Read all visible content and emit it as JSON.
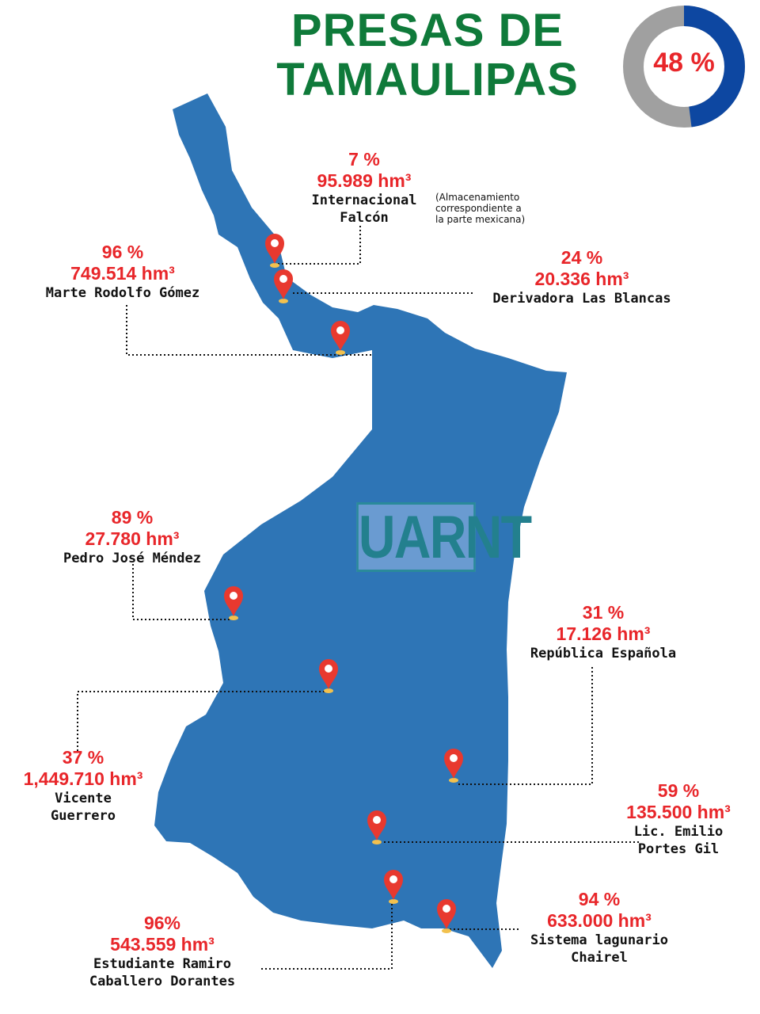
{
  "title_line1": "PRESAS DE",
  "title_line2": "TAMAULIPAS",
  "overall": {
    "label": "48 %",
    "percent": 48,
    "fill_color": "#0d47a1",
    "track_color": "#a0a0a0"
  },
  "colors": {
    "map": "#2e75b6",
    "title": "#0f7a3a",
    "value": "#e8262a",
    "pin": "#e8392f"
  },
  "logo": "UARNT",
  "note": [
    "(Almacenamiento",
    "correspondiente a",
    "la parte mexicana)"
  ],
  "dams": [
    {
      "pct": "7 %",
      "vol": "95.989 hm³",
      "name": [
        "Internacional",
        "Falcón"
      ]
    },
    {
      "pct": "96 %",
      "vol": "749.514 hm³",
      "name": [
        "Marte Rodolfo Gómez"
      ]
    },
    {
      "pct": "24 %",
      "vol": "20.336 hm³",
      "name": [
        "Derivadora Las Blancas"
      ]
    },
    {
      "pct": "89 %",
      "vol": "27.780 hm³",
      "name": [
        "Pedro José Méndez"
      ]
    },
    {
      "pct": "31 %",
      "vol": "17.126 hm³",
      "name": [
        "República Española"
      ]
    },
    {
      "pct": "37 %",
      "vol": "1,449.710 hm³",
      "name": [
        "Vicente",
        "Guerrero"
      ]
    },
    {
      "pct": "59 %",
      "vol": "135.500 hm³",
      "name": [
        "Lic. Emilio",
        "Portes Gil"
      ]
    },
    {
      "pct": "94 %",
      "vol": "633.000 hm³",
      "name": [
        "Sistema lagunario",
        "Chairel"
      ]
    },
    {
      "pct": "96%",
      "vol": "543.559 hm³",
      "name": [
        "Estudiante Ramiro",
        "Caballero Dorantes"
      ]
    }
  ]
}
